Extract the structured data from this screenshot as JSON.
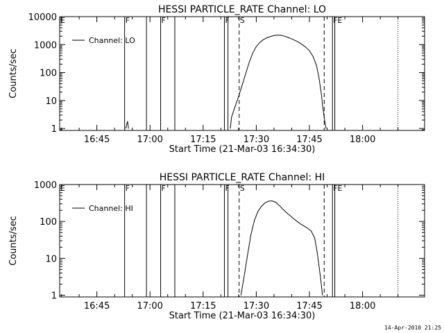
{
  "footer_timestamp": "14-Apr-2010 21:25",
  "chart_data": [
    {
      "type": "line",
      "title": "HESSI PARTICLE_RATE Channel: LO",
      "xlabel": "Start Time (21-Mar-03 16:34:30)",
      "ylabel": "Counts/sec",
      "y_scale": "log",
      "ylim": [
        0.85,
        10000
      ],
      "xlim": [
        "16:34:30",
        "18:17:30"
      ],
      "x_ticks": [
        "16:45",
        "17:00",
        "17:15",
        "17:30",
        "17:45",
        "18:00"
      ],
      "y_ticks": [
        "1",
        "10",
        "100",
        "1000",
        "10000"
      ],
      "legend": {
        "position": "top-left",
        "entries": [
          "Channel: LO"
        ]
      },
      "grid": false,
      "markers": [
        {
          "time": "16:34:30",
          "style": "solid",
          "label": "E"
        },
        {
          "time": "16:52:50",
          "style": "solid",
          "label": "F"
        },
        {
          "time": "16:59:00",
          "style": "solid",
          "label": ""
        },
        {
          "time": "17:03:00",
          "style": "solid",
          "label": "F"
        },
        {
          "time": "17:07:00",
          "style": "solid",
          "label": ""
        },
        {
          "time": "17:21:00",
          "style": "solid",
          "label": "F"
        },
        {
          "time": "17:22:00",
          "style": "solid",
          "label": ""
        },
        {
          "time": "17:25:10",
          "style": "dashed",
          "label": "S"
        },
        {
          "time": "17:49:10",
          "style": "dashed",
          "label": ""
        },
        {
          "time": "17:51:30",
          "style": "solid",
          "label": "FE"
        },
        {
          "time": "17:52:10",
          "style": "solid",
          "label": ""
        },
        {
          "time": "18:10:00",
          "style": "dotted",
          "label": ""
        }
      ],
      "series": [
        {
          "name": "Channel: LO",
          "segments": [
            [
              [
                "16:53:10",
                1
              ],
              [
                "16:53:25",
                1.4
              ],
              [
                "16:53:40",
                1.8
              ],
              [
                "16:53:55",
                1
              ]
            ],
            [
              [
                "17:22:40",
                1
              ],
              [
                "17:23:00",
                2.5
              ],
              [
                "17:24:00",
                6
              ],
              [
                "17:25:00",
                14
              ],
              [
                "17:26:00",
                35
              ],
              [
                "17:27:00",
                90
              ],
              [
                "17:28:00",
                230
              ],
              [
                "17:29:00",
                500
              ],
              [
                "17:30:00",
                850
              ],
              [
                "17:31:00",
                1200
              ],
              [
                "17:32:00",
                1500
              ],
              [
                "17:33:00",
                1750
              ],
              [
                "17:34:00",
                1950
              ],
              [
                "17:35:00",
                2100
              ],
              [
                "17:36:00",
                2200
              ],
              [
                "17:37:00",
                2150
              ],
              [
                "17:38:00",
                2000
              ],
              [
                "17:39:00",
                1800
              ],
              [
                "17:40:00",
                1600
              ],
              [
                "17:41:00",
                1400
              ],
              [
                "17:42:00",
                1200
              ],
              [
                "17:43:00",
                1000
              ],
              [
                "17:44:00",
                800
              ],
              [
                "17:45:00",
                600
              ],
              [
                "17:46:00",
                380
              ],
              [
                "17:47:00",
                180
              ],
              [
                "17:47:40",
                70
              ],
              [
                "17:48:20",
                18
              ],
              [
                "17:48:50",
                5
              ],
              [
                "17:49:10",
                2.5
              ],
              [
                "17:49:40",
                1
              ]
            ]
          ]
        }
      ]
    },
    {
      "type": "line",
      "title": "HESSI PARTICLE_RATE Channel: HI",
      "xlabel": "Start Time (21-Mar-03 16:34:30)",
      "ylabel": "Counts/sec",
      "y_scale": "log",
      "ylim": [
        0.9,
        1000
      ],
      "xlim": [
        "16:34:30",
        "18:17:30"
      ],
      "x_ticks": [
        "16:45",
        "17:00",
        "17:15",
        "17:30",
        "17:45",
        "18:00"
      ],
      "y_ticks": [
        "1",
        "10",
        "100",
        "1000"
      ],
      "legend": {
        "position": "top-left",
        "entries": [
          "Channel: HI"
        ]
      },
      "grid": false,
      "markers": [
        {
          "time": "16:34:30",
          "style": "solid",
          "label": "E"
        },
        {
          "time": "16:52:50",
          "style": "solid",
          "label": "F"
        },
        {
          "time": "16:59:00",
          "style": "solid",
          "label": ""
        },
        {
          "time": "17:03:00",
          "style": "solid",
          "label": "F"
        },
        {
          "time": "17:07:00",
          "style": "solid",
          "label": ""
        },
        {
          "time": "17:21:00",
          "style": "solid",
          "label": "F"
        },
        {
          "time": "17:22:00",
          "style": "solid",
          "label": ""
        },
        {
          "time": "17:25:10",
          "style": "dashed",
          "label": "S"
        },
        {
          "time": "17:49:10",
          "style": "dashed",
          "label": ""
        },
        {
          "time": "17:51:30",
          "style": "solid",
          "label": "FE"
        },
        {
          "time": "17:52:10",
          "style": "solid",
          "label": ""
        },
        {
          "time": "18:10:00",
          "style": "dotted",
          "label": ""
        }
      ],
      "series": [
        {
          "name": "Channel: HI",
          "segments": [
            [
              [
                "17:25:40",
                1
              ],
              [
                "17:26:30",
                3
              ],
              [
                "17:27:30",
                12
              ],
              [
                "17:28:30",
                45
              ],
              [
                "17:29:30",
                110
              ],
              [
                "17:30:30",
                190
              ],
              [
                "17:31:30",
                260
              ],
              [
                "17:32:30",
                320
              ],
              [
                "17:33:30",
                355
              ],
              [
                "17:34:30",
                360
              ],
              [
                "17:35:30",
                330
              ],
              [
                "17:36:30",
                270
              ],
              [
                "17:37:30",
                215
              ],
              [
                "17:38:30",
                175
              ],
              [
                "17:39:30",
                145
              ],
              [
                "17:40:30",
                120
              ],
              [
                "17:41:30",
                100
              ],
              [
                "17:42:30",
                85
              ],
              [
                "17:43:30",
                75
              ],
              [
                "17:44:30",
                65
              ],
              [
                "17:45:30",
                55
              ],
              [
                "17:46:30",
                35
              ],
              [
                "17:47:10",
                15
              ],
              [
                "17:47:50",
                5
              ],
              [
                "17:48:20",
                2
              ],
              [
                "17:48:40",
                1
              ]
            ]
          ]
        }
      ]
    }
  ]
}
